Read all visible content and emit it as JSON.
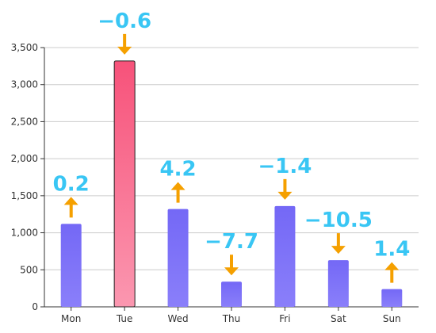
{
  "chart_data": {
    "type": "bar",
    "title": "",
    "xlabel": "",
    "ylabel": "",
    "categories": [
      "Mon",
      "Tue",
      "Wed",
      "Thu",
      "Fri",
      "Sat",
      "Sun"
    ],
    "values": [
      1120,
      3320,
      1320,
      340,
      1360,
      630,
      240
    ],
    "change_labels": [
      "0.2",
      "−0.6",
      "4.2",
      "−7.7",
      "−1.4",
      "−10.5",
      "1.4"
    ],
    "change_direction": [
      "up",
      "down",
      "up",
      "down",
      "down",
      "down",
      "up"
    ],
    "highlight_index": 1,
    "ylim": [
      0,
      3500
    ],
    "yticks": [
      0,
      500,
      1000,
      1500,
      2000,
      2500,
      3000,
      3500
    ],
    "ytick_labels": [
      "0",
      "500",
      "1,000",
      "1,500",
      "2,000",
      "2,500",
      "3,000",
      "3,500"
    ],
    "grid": true,
    "legend": "none",
    "colors": {
      "bar_top": "#7468f6",
      "bar_bottom": "#8a7ffa",
      "highlight_top": "#f7527a",
      "highlight_bottom": "#fb97b0",
      "arrow": "#f5a000",
      "label": "#39c6f4",
      "grid": "#cccccc",
      "axis": "#333333"
    }
  }
}
